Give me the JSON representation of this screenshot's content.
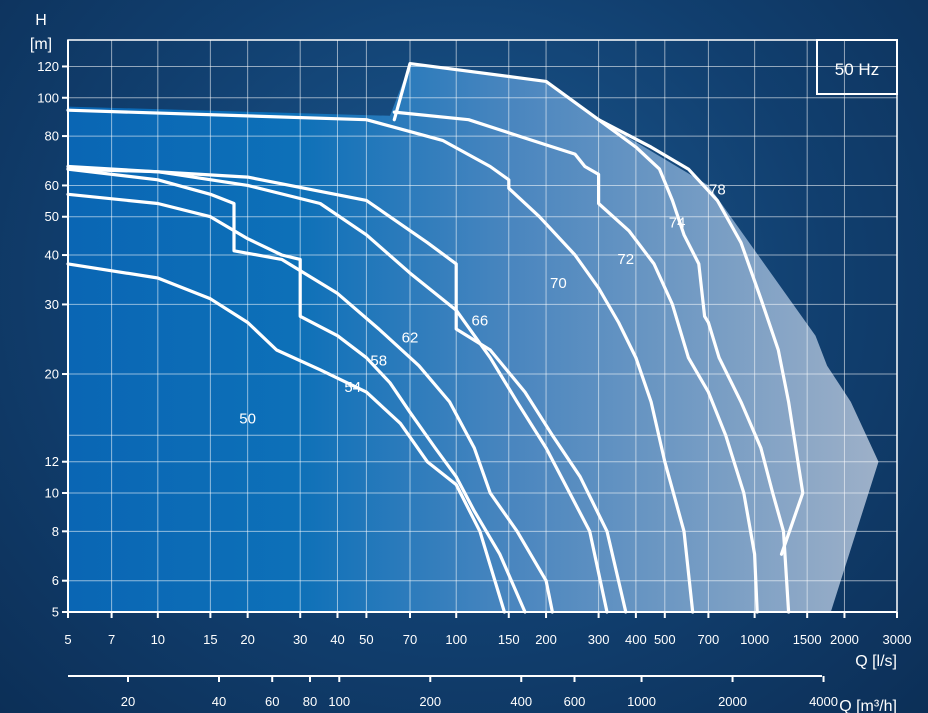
{
  "chart_data": {
    "type": "line",
    "title": "",
    "frequency_label": "50 Hz",
    "ylabel_symbol": "H",
    "ylabel_unit": "[m]",
    "xlabel": "Q [l/s]",
    "x2label": "Q [m³/h]",
    "xscale": "log",
    "yscale": "log",
    "xlim": [
      5,
      3000
    ],
    "ylim": [
      5,
      140
    ],
    "grid": true,
    "x_ticks": [
      5,
      7,
      10,
      15,
      20,
      30,
      40,
      50,
      70,
      100,
      150,
      200,
      300,
      400,
      500,
      700,
      1000,
      1500,
      2000,
      3000
    ],
    "x_tick_labels": [
      "5",
      "7",
      "10",
      "15",
      "20",
      "30",
      "40",
      "50",
      "70",
      "100",
      "150",
      "200",
      "300",
      "400",
      "500",
      "700",
      "1000",
      "1500",
      "2000",
      "3000"
    ],
    "x2_ticks": [
      20,
      40,
      60,
      80,
      100,
      200,
      400,
      600,
      1000,
      2000,
      4000
    ],
    "x2_tick_labels": [
      "20",
      "40",
      "60",
      "80",
      "100",
      "200",
      "400",
      "600",
      "1000",
      "2000",
      "4000"
    ],
    "y_ticks": [
      5,
      6,
      8,
      10,
      12,
      20,
      30,
      40,
      50,
      60,
      80,
      100,
      120
    ],
    "y_tick_labels": [
      "5",
      "6",
      "8",
      "10",
      "12",
      "20",
      "30",
      "40",
      "50",
      "60",
      "80",
      "100",
      "120"
    ],
    "y_grid": [
      5,
      6,
      8,
      10,
      12,
      14,
      20,
      30,
      40,
      50,
      60,
      80,
      100,
      120
    ],
    "envelope": [
      [
        5,
        95
      ],
      [
        60,
        90
      ],
      [
        70,
        122
      ],
      [
        200,
        110
      ],
      [
        300,
        88
      ],
      [
        700,
        60
      ],
      [
        1600,
        25
      ],
      [
        1750,
        21
      ],
      [
        2100,
        17
      ],
      [
        2600,
        12
      ],
      [
        1800,
        5
      ],
      [
        5,
        5
      ]
    ],
    "series": [
      {
        "name": "50",
        "label_at": [
          20,
          15
        ],
        "points": [
          [
            5,
            38
          ],
          [
            10,
            35
          ],
          [
            15,
            31
          ],
          [
            20,
            27
          ],
          [
            25,
            23
          ],
          [
            35,
            20.5
          ],
          [
            50,
            18
          ],
          [
            65,
            15
          ],
          [
            80,
            12
          ],
          [
            100,
            10.5
          ],
          [
            120,
            8
          ],
          [
            145,
            5
          ]
        ]
      },
      {
        "name": "54",
        "label_at": [
          45,
          18
        ],
        "points": [
          [
            5,
            57
          ],
          [
            10,
            54
          ],
          [
            15,
            50
          ],
          [
            20,
            44
          ],
          [
            26,
            40
          ],
          [
            30,
            39
          ],
          [
            30,
            28
          ],
          [
            40,
            25
          ],
          [
            50,
            22
          ],
          [
            60,
            19
          ],
          [
            70,
            16
          ],
          [
            85,
            13
          ],
          [
            100,
            11
          ],
          [
            115,
            9
          ],
          [
            140,
            7
          ],
          [
            170,
            5
          ]
        ]
      },
      {
        "name": "58",
        "label_at": [
          55,
          21
        ],
        "points": [
          [
            5,
            66
          ],
          [
            10,
            62
          ],
          [
            15,
            57
          ],
          [
            18,
            54
          ],
          [
            18,
            41
          ],
          [
            26,
            39
          ],
          [
            40,
            32
          ],
          [
            55,
            26
          ],
          [
            75,
            21
          ],
          [
            95,
            17
          ],
          [
            115,
            13
          ],
          [
            130,
            10
          ],
          [
            160,
            8
          ],
          [
            200,
            6
          ],
          [
            210,
            5
          ]
        ]
      },
      {
        "name": "62",
        "label_at": [
          70,
          24
        ],
        "points": [
          [
            5,
            66
          ],
          [
            10,
            65
          ],
          [
            20,
            60
          ],
          [
            35,
            54
          ],
          [
            50,
            45
          ],
          [
            70,
            36
          ],
          [
            100,
            29
          ],
          [
            130,
            22
          ],
          [
            160,
            17
          ],
          [
            200,
            13
          ],
          [
            240,
            10
          ],
          [
            280,
            8
          ],
          [
            320,
            5
          ]
        ]
      },
      {
        "name": "66",
        "label_at": [
          120,
          26.5
        ],
        "points": [
          [
            5,
            67
          ],
          [
            20,
            63
          ],
          [
            50,
            55
          ],
          [
            80,
            43
          ],
          [
            100,
            38
          ],
          [
            100,
            26
          ],
          [
            130,
            23
          ],
          [
            170,
            18
          ],
          [
            210,
            14
          ],
          [
            260,
            11
          ],
          [
            320,
            8
          ],
          [
            370,
            5
          ]
        ]
      },
      {
        "name": "70",
        "label_at": [
          220,
          33
        ],
        "points": [
          [
            5,
            93
          ],
          [
            50,
            88
          ],
          [
            90,
            78
          ],
          [
            130,
            67
          ],
          [
            150,
            62
          ],
          [
            150,
            59
          ],
          [
            190,
            50
          ],
          [
            250,
            40
          ],
          [
            300,
            33
          ],
          [
            350,
            27
          ],
          [
            400,
            22
          ],
          [
            450,
            17
          ],
          [
            500,
            12
          ],
          [
            580,
            8
          ],
          [
            620,
            5
          ]
        ]
      },
      {
        "name": "72",
        "label_at": [
          370,
          38
        ],
        "points": [
          [
            62,
            92
          ],
          [
            110,
            88
          ],
          [
            200,
            76
          ],
          [
            250,
            72
          ],
          [
            270,
            67
          ],
          [
            300,
            64
          ],
          [
            300,
            54
          ],
          [
            380,
            46
          ],
          [
            460,
            38
          ],
          [
            530,
            30
          ],
          [
            600,
            22
          ],
          [
            700,
            18
          ],
          [
            800,
            14
          ],
          [
            920,
            10
          ],
          [
            1000,
            7
          ],
          [
            1020,
            5
          ]
        ]
      },
      {
        "name": "74",
        "label_at": [
          550,
          47
        ],
        "points": [
          [
            62,
            88
          ],
          [
            70,
            122
          ],
          [
            200,
            110
          ],
          [
            300,
            88
          ],
          [
            400,
            75
          ],
          [
            480,
            66
          ],
          [
            530,
            55
          ],
          [
            580,
            45
          ],
          [
            650,
            38
          ],
          [
            680,
            28
          ],
          [
            700,
            27
          ],
          [
            760,
            22
          ],
          [
            900,
            17
          ],
          [
            1050,
            13
          ],
          [
            1150,
            10
          ],
          [
            1250,
            8
          ],
          [
            1300,
            5
          ]
        ]
      },
      {
        "name": "78",
        "label_at": [
          750,
          57
        ],
        "points": [
          [
            300,
            88
          ],
          [
            450,
            75
          ],
          [
            600,
            66
          ],
          [
            750,
            55
          ],
          [
            900,
            43
          ],
          [
            1050,
            31
          ],
          [
            1200,
            23
          ],
          [
            1300,
            17
          ],
          [
            1450,
            10
          ],
          [
            1230,
            7
          ]
        ]
      }
    ]
  }
}
